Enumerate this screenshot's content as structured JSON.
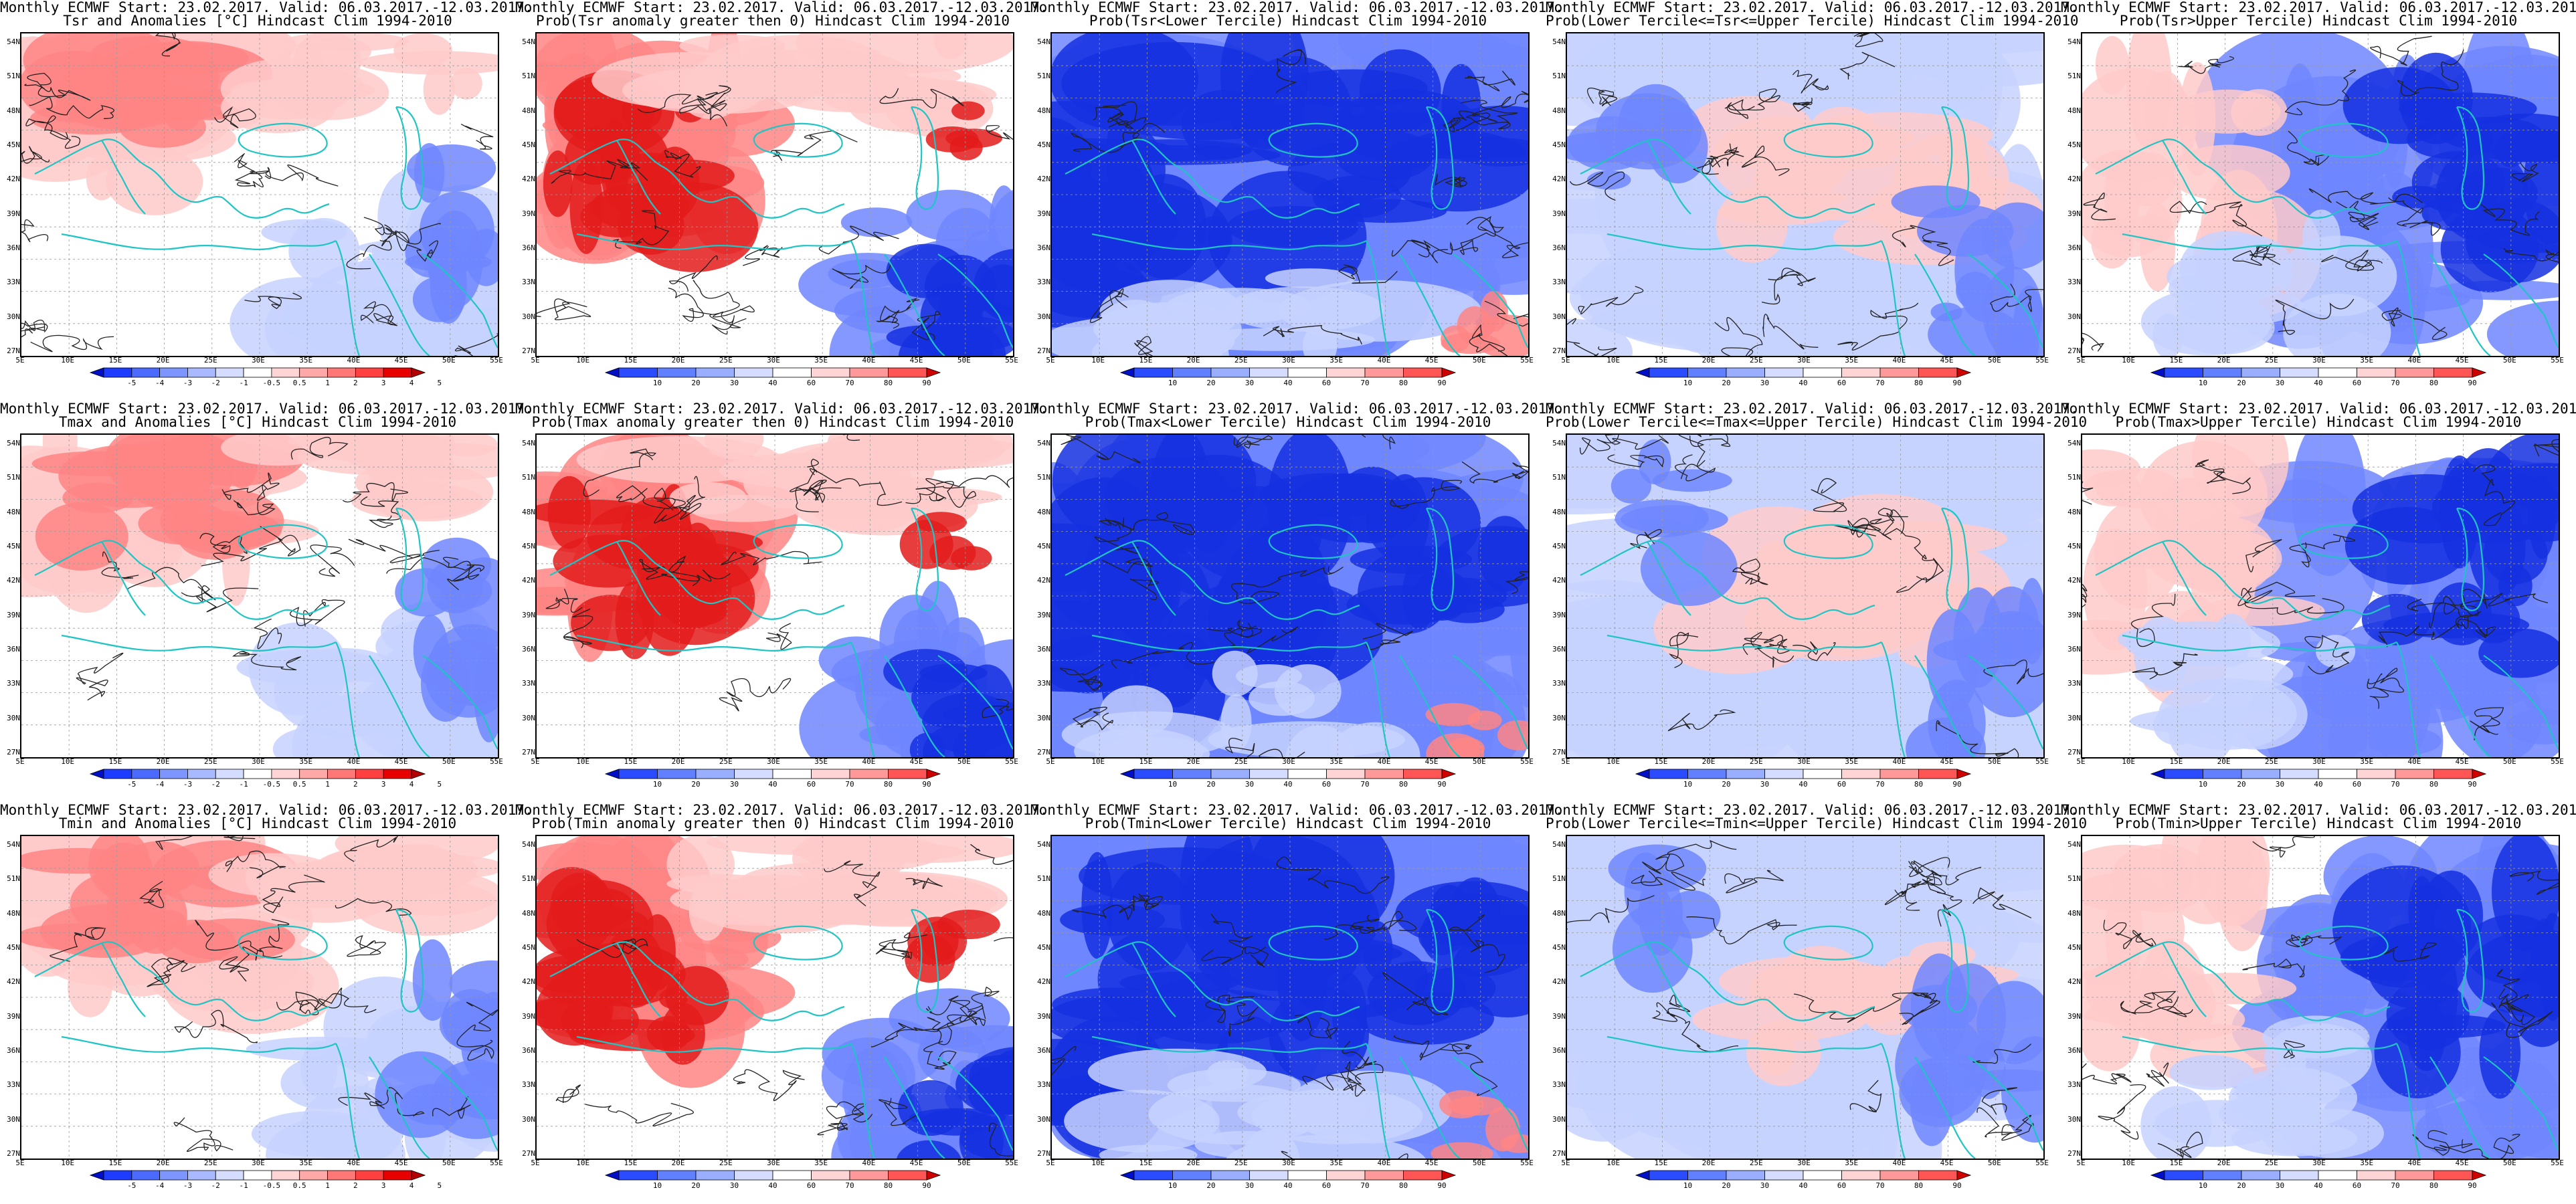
{
  "header_line1": "Monthly ECMWF Start: 23.02.2017. Valid: 06.03.2017.-12.03.2017.",
  "axes": {
    "lat_labels": [
      "54N",
      "51N",
      "48N",
      "45N",
      "42N",
      "39N",
      "36N",
      "33N",
      "30N",
      "27N"
    ],
    "lon_labels": [
      "5E",
      "10E",
      "15E",
      "20E",
      "25E",
      "30E",
      "35E",
      "40E",
      "45E",
      "50E",
      "55E"
    ]
  },
  "colorbars": {
    "anomaly": {
      "ticks": [
        "-5",
        "-4",
        "-3",
        "-2",
        "-1",
        "-0.5",
        "0.5",
        "1",
        "2",
        "3",
        "4",
        "5"
      ],
      "colors": [
        "#0010c8",
        "#1e3cff",
        "#4b6bff",
        "#7d95ff",
        "#a9b9ff",
        "#d4dcff",
        "#ffffff",
        "#ffd4d4",
        "#ffa8a8",
        "#ff7777",
        "#ff4040",
        "#e60000",
        "#b40000"
      ]
    },
    "probability": {
      "ticks": [
        "10",
        "20",
        "30",
        "40",
        "60",
        "70",
        "80",
        "90"
      ],
      "colors": [
        "#0010c8",
        "#2a4bff",
        "#6080ff",
        "#99aeff",
        "#d4dcff",
        "#ffffff",
        "#ffd4d4",
        "#ff9999",
        "#ff5555",
        "#d00000"
      ]
    }
  },
  "panels": [
    {
      "title": "Tsr and Anomalies [°C] Hindcast Clim 1994-2010",
      "colorbar": "anomaly",
      "scheme": "warmwest"
    },
    {
      "title": "Prob(Tsr anomaly greater then 0) Hindcast Clim 1994-2010",
      "colorbar": "probability",
      "scheme": "redwest"
    },
    {
      "title": "Prob(Tsr<Lower Tercile) Hindcast Clim 1994-2010",
      "colorbar": "probability",
      "scheme": "allblue"
    },
    {
      "title": "Prob(Lower Tercile<=Tsr<=Upper Tercile) Hindcast Clim 1994-2010",
      "colorbar": "probability",
      "scheme": "mixed"
    },
    {
      "title": "Prob(Tsr>Upper Tercile) Hindcast Clim 1994-2010",
      "colorbar": "probability",
      "scheme": "blueeast"
    },
    {
      "title": "Tmax and Anomalies [°C] Hindcast Clim 1994-2010",
      "colorbar": "anomaly",
      "scheme": "warmwest"
    },
    {
      "title": "Prob(Tmax anomaly greater then 0) Hindcast Clim 1994-2010",
      "colorbar": "probability",
      "scheme": "redwest"
    },
    {
      "title": "Prob(Tmax<Lower Tercile) Hindcast Clim 1994-2010",
      "colorbar": "probability",
      "scheme": "allblue"
    },
    {
      "title": "Prob(Lower Tercile<=Tmax<=Upper Tercile) Hindcast Clim 1994-2010",
      "colorbar": "probability",
      "scheme": "mixed"
    },
    {
      "title": "Prob(Tmax>Upper Tercile) Hindcast Clim 1994-2010",
      "colorbar": "probability",
      "scheme": "blueeast"
    },
    {
      "title": "Tmin and Anomalies [°C] Hindcast Clim 1994-2010",
      "colorbar": "anomaly",
      "scheme": "warmwest"
    },
    {
      "title": "Prob(Tmin anomaly greater then 0) Hindcast Clim 1994-2010",
      "colorbar": "probability",
      "scheme": "redwest"
    },
    {
      "title": "Prob(Tmin<Lower Tercile) Hindcast Clim 1994-2010",
      "colorbar": "probability",
      "scheme": "allblue"
    },
    {
      "title": "Prob(Lower Tercile<=Tmin<=Upper Tercile) Hindcast Clim 1994-2010",
      "colorbar": "probability",
      "scheme": "mixed"
    },
    {
      "title": "Prob(Tmin>Upper Tercile) Hindcast Clim 1994-2010",
      "colorbar": "probability",
      "scheme": "blueeast"
    }
  ]
}
